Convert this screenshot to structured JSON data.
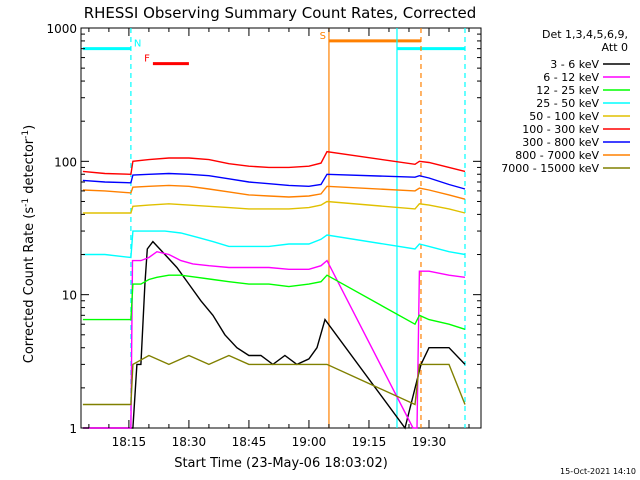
{
  "chart_data": {
    "type": "line",
    "title": "RHESSI Observing Summary Count Rates, Corrected",
    "xlabel": "Start Time (23-May-06 18:03:02)",
    "ylabel_main": "Corrected Count Rate (s",
    "ylabel_sup1": "-1",
    "ylabel_mid": " detector",
    "ylabel_sup2": "-1",
    "ylabel_end": ")",
    "footer": "15-Oct-2021 14:10",
    "x_unit": "minutes of the hour starting 18:00",
    "x_ticks": [
      {
        "t": 15,
        "label": "18:15"
      },
      {
        "t": 30,
        "label": "18:30"
      },
      {
        "t": 45,
        "label": "18:45"
      },
      {
        "t": 60,
        "label": "19:00"
      },
      {
        "t": 75,
        "label": "19:15"
      },
      {
        "t": 90,
        "label": "19:30"
      }
    ],
    "xlim": [
      3.03,
      103
    ],
    "y_scale": "log",
    "ylim": [
      1,
      1000
    ],
    "y_ticks": [
      {
        "v": 1,
        "label": "1"
      },
      {
        "v": 10,
        "label": "10"
      },
      {
        "v": 100,
        "label": "100"
      },
      {
        "v": 1000,
        "label": "1000"
      }
    ],
    "legend_header": [
      "Det 1,3,4,5,6,9,",
      "Att 0"
    ],
    "legend_position": "right",
    "series": [
      {
        "name": "3 - 6 keV",
        "color": "#000000",
        "points": [
          [
            3.5,
            1
          ],
          [
            16,
            1
          ],
          [
            17,
            3
          ],
          [
            18,
            3
          ],
          [
            19,
            12
          ],
          [
            19.6,
            22
          ],
          [
            21,
            25
          ],
          [
            24,
            20
          ],
          [
            27,
            16
          ],
          [
            30,
            12
          ],
          [
            33,
            9
          ],
          [
            36,
            7
          ],
          [
            39,
            5
          ],
          [
            42,
            4
          ],
          [
            45,
            3.5
          ],
          [
            48,
            3.5
          ],
          [
            51,
            3
          ],
          [
            54,
            3.5
          ],
          [
            57,
            3
          ],
          [
            60,
            3.3
          ],
          [
            62,
            4
          ],
          [
            64,
            6.5
          ],
          [
            84,
            1
          ],
          [
            88,
            3
          ],
          [
            90,
            4
          ],
          [
            95,
            4
          ],
          [
            99,
            3
          ]
        ]
      },
      {
        "name": "6 - 12 keV",
        "color": "#ff00ff",
        "points": [
          [
            3.5,
            1
          ],
          [
            15.5,
            1
          ],
          [
            15.9,
            18
          ],
          [
            18,
            18
          ],
          [
            20,
            19
          ],
          [
            22,
            21
          ],
          [
            25,
            20
          ],
          [
            28,
            18
          ],
          [
            31,
            17
          ],
          [
            35,
            16.5
          ],
          [
            40,
            16
          ],
          [
            45,
            16
          ],
          [
            50,
            16
          ],
          [
            55,
            15.5
          ],
          [
            60,
            15.5
          ],
          [
            63,
            16.5
          ],
          [
            64.5,
            18
          ],
          [
            86,
            1
          ],
          [
            87,
            1
          ],
          [
            87.6,
            15
          ],
          [
            90,
            15
          ],
          [
            95,
            14
          ],
          [
            99,
            13.5
          ]
        ]
      },
      {
        "name": "12 - 25 keV",
        "color": "#00ff00",
        "points": [
          [
            3.5,
            6.5
          ],
          [
            9,
            6.5
          ],
          [
            15.5,
            6.5
          ],
          [
            16,
            12
          ],
          [
            18,
            12
          ],
          [
            20,
            13
          ],
          [
            22,
            13.5
          ],
          [
            25,
            14
          ],
          [
            28,
            14
          ],
          [
            32,
            13.5
          ],
          [
            36,
            13
          ],
          [
            40,
            12.5
          ],
          [
            45,
            12
          ],
          [
            50,
            12
          ],
          [
            55,
            11.5
          ],
          [
            60,
            12
          ],
          [
            63,
            12.5
          ],
          [
            64.5,
            14
          ],
          [
            86.5,
            6
          ],
          [
            87.6,
            7
          ],
          [
            90,
            6.5
          ],
          [
            95,
            6
          ],
          [
            99,
            5.5
          ]
        ]
      },
      {
        "name": "25 - 50 keV",
        "color": "#00ffff",
        "points": [
          [
            3.5,
            20
          ],
          [
            9,
            20
          ],
          [
            15.5,
            19
          ],
          [
            16,
            30
          ],
          [
            20,
            30
          ],
          [
            24,
            30
          ],
          [
            28,
            29
          ],
          [
            32,
            27
          ],
          [
            36,
            25
          ],
          [
            40,
            23
          ],
          [
            45,
            23
          ],
          [
            50,
            23
          ],
          [
            55,
            24
          ],
          [
            60,
            24
          ],
          [
            63,
            26
          ],
          [
            64.5,
            28
          ],
          [
            86.5,
            22
          ],
          [
            87.6,
            24
          ],
          [
            90,
            23
          ],
          [
            95,
            21
          ],
          [
            99,
            20
          ]
        ]
      },
      {
        "name": "50 - 100 keV",
        "color": "#e0c000",
        "points": [
          [
            3.5,
            41
          ],
          [
            9,
            41
          ],
          [
            15.5,
            41
          ],
          [
            16,
            46
          ],
          [
            20,
            47
          ],
          [
            25,
            48
          ],
          [
            30,
            47
          ],
          [
            35,
            46
          ],
          [
            40,
            45
          ],
          [
            45,
            44
          ],
          [
            50,
            44
          ],
          [
            55,
            44
          ],
          [
            60,
            45
          ],
          [
            63,
            47
          ],
          [
            64.5,
            50
          ],
          [
            86.5,
            44
          ],
          [
            87.6,
            48
          ],
          [
            90,
            47
          ],
          [
            95,
            44
          ],
          [
            99,
            41
          ]
        ]
      },
      {
        "name": "100 - 300 keV",
        "color": "#ff0000",
        "points": [
          [
            3.5,
            84
          ],
          [
            9,
            81
          ],
          [
            15.5,
            80
          ],
          [
            16,
            100
          ],
          [
            20,
            103
          ],
          [
            25,
            106
          ],
          [
            30,
            106
          ],
          [
            35,
            103
          ],
          [
            40,
            96
          ],
          [
            45,
            92
          ],
          [
            50,
            90
          ],
          [
            55,
            90
          ],
          [
            60,
            92
          ],
          [
            63,
            97
          ],
          [
            64.5,
            118
          ],
          [
            86.5,
            95
          ],
          [
            87.6,
            100
          ],
          [
            90,
            98
          ],
          [
            95,
            90
          ],
          [
            99,
            84
          ]
        ]
      },
      {
        "name": "300 - 800 keV",
        "color": "#0000ff",
        "points": [
          [
            3.5,
            72
          ],
          [
            9,
            70
          ],
          [
            15.5,
            69
          ],
          [
            16,
            79
          ],
          [
            20,
            80
          ],
          [
            25,
            81
          ],
          [
            30,
            80
          ],
          [
            35,
            78
          ],
          [
            40,
            74
          ],
          [
            45,
            70
          ],
          [
            50,
            68
          ],
          [
            55,
            66
          ],
          [
            60,
            65
          ],
          [
            63,
            67
          ],
          [
            64.5,
            80
          ],
          [
            86.5,
            76
          ],
          [
            87.6,
            78
          ],
          [
            90,
            75
          ],
          [
            95,
            67
          ],
          [
            99,
            62
          ]
        ]
      },
      {
        "name": "800 - 7000 keV",
        "color": "#ff8000",
        "points": [
          [
            3.5,
            61
          ],
          [
            9,
            60
          ],
          [
            15.5,
            58
          ],
          [
            16,
            64
          ],
          [
            20,
            65
          ],
          [
            25,
            66
          ],
          [
            30,
            65
          ],
          [
            35,
            62
          ],
          [
            40,
            59
          ],
          [
            45,
            56
          ],
          [
            50,
            55
          ],
          [
            55,
            54
          ],
          [
            60,
            55
          ],
          [
            63,
            57
          ],
          [
            64.5,
            65
          ],
          [
            86.5,
            60
          ],
          [
            87.6,
            63
          ],
          [
            90,
            61
          ],
          [
            95,
            56
          ],
          [
            99,
            52
          ]
        ]
      },
      {
        "name": "7000 - 15000 keV",
        "color": "#808000",
        "points": [
          [
            3.5,
            1.5
          ],
          [
            15.5,
            1.5
          ],
          [
            16,
            3
          ],
          [
            20,
            3.5
          ],
          [
            25,
            3
          ],
          [
            30,
            3.5
          ],
          [
            35,
            3
          ],
          [
            40,
            3.5
          ],
          [
            45,
            3
          ],
          [
            50,
            3
          ],
          [
            55,
            3
          ],
          [
            60,
            3
          ],
          [
            64.5,
            3
          ],
          [
            86.5,
            1.5
          ],
          [
            87.6,
            3
          ],
          [
            90,
            3
          ],
          [
            95,
            3
          ],
          [
            99,
            1.5
          ]
        ]
      }
    ],
    "intervals": [
      {
        "label": "",
        "color": "#00ffff",
        "start": 3.5,
        "end": 15.5,
        "level": 700
      },
      {
        "label": "N",
        "color": "#00ffff",
        "start": 15.5,
        "end": 15.5,
        "level": 700
      },
      {
        "label": "F",
        "color": "#ff0000",
        "start": 21,
        "end": 30,
        "level": 540
      },
      {
        "label": "S",
        "color": "#ff8000",
        "start": 65,
        "end": 88,
        "level": 800
      },
      {
        "label": "",
        "color": "#00ffff",
        "start": 82,
        "end": 99,
        "level": 700
      }
    ],
    "markers": [
      {
        "t": 15.5,
        "color": "#00ffff",
        "style": "dashed"
      },
      {
        "t": 65,
        "color": "#ff8000",
        "style": "solid"
      },
      {
        "t": 82,
        "color": "#00ffff",
        "style": "solid"
      },
      {
        "t": 88,
        "color": "#ff8000",
        "style": "dashed"
      },
      {
        "t": 99,
        "color": "#00ffff",
        "style": "dashed"
      }
    ]
  }
}
